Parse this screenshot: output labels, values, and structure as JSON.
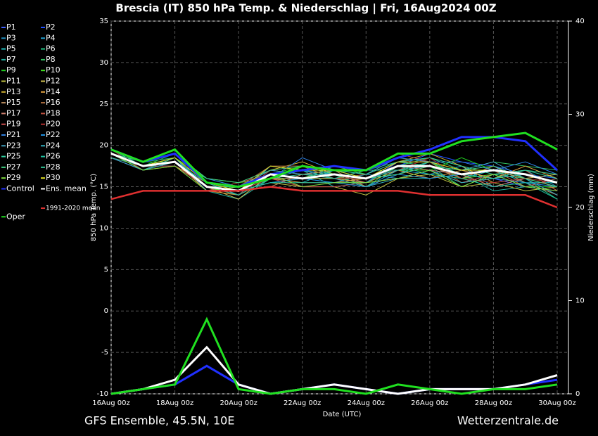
{
  "chart_data": {
    "type": "line",
    "title": "Brescia  (IT)  850 hPa Temp. & Niederschlag | Fri, 16Aug2024 00Z",
    "y_label": "850 hPa Temp. (°C)",
    "y2_label": "Niederschlag (mm)",
    "x_label": "Date (UTC)",
    "footer_left": "GFS Ensemble, 45.5N, 10E",
    "footer_right": "Wetterzentrale.de",
    "categories": [
      "16Aug 00z",
      null,
      "18Aug 00z",
      null,
      "20Aug 00z",
      null,
      "22Aug 00z",
      null,
      "24Aug 00z",
      null,
      "26Aug 00z",
      null,
      "28Aug 00z",
      null,
      "30Aug 00z"
    ],
    "ylim": [
      -10,
      35
    ],
    "yticks": [
      -10,
      -5,
      0,
      5,
      10,
      15,
      20,
      25,
      30,
      35
    ],
    "y2lim": [
      0,
      40
    ],
    "y2ticks": [
      0,
      10,
      20,
      30,
      40
    ],
    "grid": true,
    "series": [
      {
        "name": "P1",
        "color": "#4060ff",
        "values": [
          19,
          17.5,
          18.5,
          15,
          14.5,
          16.5,
          17,
          16,
          15.5,
          18,
          18.5,
          17,
          16,
          15,
          14.5
        ]
      },
      {
        "name": "P2",
        "color": "#2050ff",
        "values": [
          19,
          17,
          18,
          15.5,
          14,
          17,
          16.5,
          17,
          16,
          17.5,
          19,
          18,
          17.5,
          16.5,
          16
        ]
      },
      {
        "name": "P3",
        "color": "#2090c0",
        "values": [
          18.5,
          17,
          18.5,
          14.5,
          15,
          16,
          16,
          15.5,
          16.5,
          16,
          17,
          15.5,
          16,
          17,
          15
        ]
      },
      {
        "name": "P4",
        "color": "#20a0d0",
        "values": [
          19,
          17.5,
          17.5,
          15,
          14,
          17.5,
          17,
          16.5,
          15,
          17,
          16.5,
          17.5,
          15,
          16,
          14
        ]
      },
      {
        "name": "P5",
        "color": "#20c0c0",
        "values": [
          19,
          17,
          18,
          16,
          15,
          16,
          15.5,
          17,
          16,
          16.5,
          18,
          16,
          17,
          15.5,
          15.5
        ]
      },
      {
        "name": "P6",
        "color": "#20c080",
        "values": [
          19.5,
          18,
          18.5,
          15,
          14.5,
          15.5,
          16,
          16,
          17,
          18,
          17.5,
          15,
          16.5,
          16,
          13.5
        ]
      },
      {
        "name": "P7",
        "color": "#20b0a0",
        "values": [
          19,
          17,
          18,
          14.5,
          13.5,
          16,
          17,
          15,
          15.5,
          16,
          16,
          16.5,
          14.5,
          15,
          16
        ]
      },
      {
        "name": "P8",
        "color": "#30c060",
        "values": [
          19,
          17.5,
          19,
          15.5,
          14,
          17,
          16.5,
          16.5,
          15,
          17.5,
          18.5,
          17,
          18,
          17.5,
          17
        ]
      },
      {
        "name": "P9",
        "color": "#20d020",
        "values": [
          19.5,
          18,
          18,
          15,
          15,
          16.5,
          17.5,
          16,
          16,
          17,
          17,
          18.5,
          17,
          15,
          15
        ]
      },
      {
        "name": "P10",
        "color": "#40e020",
        "values": [
          19,
          17.5,
          18.5,
          16,
          15.5,
          16,
          16,
          17.5,
          16.5,
          18.5,
          18,
          16,
          16.5,
          17,
          14.5
        ]
      },
      {
        "name": "P11",
        "color": "#c0c040",
        "values": [
          18.5,
          17,
          18,
          14.5,
          14.5,
          15.5,
          15,
          15,
          14,
          16,
          16.5,
          15,
          15.5,
          14.5,
          15
        ]
      },
      {
        "name": "P12",
        "color": "#d0c050",
        "values": [
          19,
          17.5,
          18.5,
          15,
          13.5,
          16.5,
          16,
          16,
          15.5,
          17,
          17.5,
          16.5,
          17,
          16,
          16.5
        ]
      },
      {
        "name": "P13",
        "color": "#d0b030",
        "values": [
          18.5,
          17,
          17.5,
          15.5,
          15,
          17,
          18,
          16.5,
          16,
          18,
          19,
          17.5,
          15.5,
          16,
          15
        ]
      },
      {
        "name": "P14",
        "color": "#e0a040",
        "values": [
          19,
          17.5,
          18,
          14.5,
          14,
          16,
          15.5,
          15.5,
          16,
          17,
          16,
          17,
          16,
          17.5,
          16
        ]
      },
      {
        "name": "P15",
        "color": "#c09060",
        "values": [
          19,
          17,
          18.5,
          15,
          14.5,
          15,
          16.5,
          17,
          15,
          16.5,
          17.5,
          16,
          17.5,
          15.5,
          14
        ]
      },
      {
        "name": "P16",
        "color": "#b07040",
        "values": [
          19,
          18,
          19,
          15.5,
          15,
          17.5,
          17.5,
          16,
          16.5,
          18,
          18,
          15.5,
          16,
          16.5,
          15.5
        ]
      },
      {
        "name": "P17",
        "color": "#d08070",
        "values": [
          18.5,
          17.5,
          18,
          15,
          14,
          16,
          16,
          16.5,
          15.5,
          17.5,
          17,
          16.5,
          15,
          16,
          15
        ]
      },
      {
        "name": "P18",
        "color": "#c05040",
        "values": [
          19,
          17,
          18.5,
          14.5,
          15.5,
          16.5,
          17,
          17.5,
          17,
          19,
          18,
          17,
          17,
          15,
          16
        ]
      },
      {
        "name": "P19",
        "color": "#d05050",
        "values": [
          19,
          17.5,
          17.5,
          15,
          14.5,
          16,
          15,
          15,
          15.5,
          16,
          17,
          15.5,
          16.5,
          17,
          14.5
        ]
      },
      {
        "name": "P20",
        "color": "#b03030",
        "values": [
          19.5,
          17,
          18,
          15.5,
          14,
          17,
          16.5,
          16,
          16,
          17,
          18.5,
          16,
          15.5,
          16,
          15.5
        ]
      },
      {
        "name": "P21",
        "color": "#3080e0",
        "values": [
          19,
          18,
          19,
          16,
          15,
          16,
          18.5,
          17,
          16.5,
          18.5,
          18,
          18,
          17,
          18,
          16.5
        ]
      },
      {
        "name": "P22",
        "color": "#2090e0",
        "values": [
          18.5,
          17,
          18,
          15,
          14.5,
          15.5,
          16,
          15.5,
          15,
          16.5,
          16,
          16.5,
          16,
          15.5,
          15
        ]
      },
      {
        "name": "P23",
        "color": "#40a0c0",
        "values": [
          19,
          17.5,
          18.5,
          14.5,
          15,
          17,
          16.5,
          16.5,
          16,
          17,
          17.5,
          17,
          18,
          16,
          14
        ]
      },
      {
        "name": "P24",
        "color": "#30b0c0",
        "values": [
          19,
          17,
          18,
          15.5,
          14,
          16,
          17,
          16,
          15,
          16,
          17,
          15.5,
          16,
          16.5,
          15.5
        ]
      },
      {
        "name": "P25",
        "color": "#30d0a0",
        "values": [
          19.5,
          17.5,
          18,
          15,
          15,
          16.5,
          16,
          17,
          16.5,
          18,
          18.5,
          17.5,
          16.5,
          17,
          16
        ]
      },
      {
        "name": "P26",
        "color": "#20c0a0",
        "values": [
          19,
          17,
          18.5,
          15,
          14.5,
          15.5,
          15.5,
          15.5,
          15.5,
          17.5,
          16.5,
          16,
          15,
          15.5,
          13.5
        ]
      },
      {
        "name": "P27",
        "color": "#40d080",
        "values": [
          19,
          18,
          19,
          16,
          15.5,
          17,
          17.5,
          16.5,
          16,
          16.5,
          17.5,
          17,
          17.5,
          16,
          15
        ]
      },
      {
        "name": "P28",
        "color": "#30c090",
        "values": [
          18.5,
          17.5,
          18,
          15,
          14,
          16,
          16.5,
          16,
          17,
          17,
          18,
          16.5,
          16,
          17,
          16.5
        ]
      },
      {
        "name": "P29",
        "color": "#80e040",
        "values": [
          19,
          17,
          17.5,
          14.5,
          15,
          16.5,
          15,
          15.5,
          15.5,
          16,
          17,
          15,
          16.5,
          15,
          14.5
        ]
      },
      {
        "name": "P30",
        "color": "#e0e020",
        "values": [
          19,
          17.5,
          18.5,
          15.5,
          14.5,
          17.5,
          17,
          17,
          16,
          18,
          18,
          17,
          17,
          16.5,
          15.5
        ]
      },
      {
        "name": "Control",
        "color": "#2030ff",
        "values": [
          19.5,
          18,
          19,
          15.5,
          15,
          16.5,
          17,
          17.5,
          17,
          18.5,
          19.5,
          21,
          21,
          20.5,
          17
        ],
        "precip": [
          0,
          0.5,
          1,
          3,
          1,
          0,
          0.5,
          1,
          0.5,
          0,
          0.5,
          0.5,
          0.5,
          1,
          1.5
        ]
      },
      {
        "name": "Ens. mean",
        "color": "#ffffff",
        "values": [
          19,
          17.5,
          18,
          15,
          14.5,
          16.5,
          16,
          16.5,
          16,
          17.5,
          17.5,
          16.5,
          17,
          16.5,
          15.5
        ],
        "precip": [
          0,
          0.5,
          1.5,
          5,
          1,
          0,
          0.5,
          1,
          0.5,
          0,
          0.5,
          0.5,
          0.5,
          1,
          2
        ]
      },
      {
        "name": "1991-2020 mean",
        "color": "#e03030",
        "values": [
          13.5,
          14.5,
          14.5,
          14.5,
          14.5,
          15,
          14.5,
          14.5,
          14.5,
          14.5,
          14,
          14,
          14,
          14,
          12.5
        ]
      },
      {
        "name": "Oper",
        "color": "#20e020",
        "values": [
          19.5,
          18,
          19.5,
          15.5,
          15,
          16,
          17.5,
          17,
          17,
          19,
          19,
          20.5,
          21,
          21.5,
          19.5
        ],
        "precip": [
          0,
          0.5,
          1,
          8,
          0.5,
          0,
          0.5,
          0.5,
          0,
          1,
          0.5,
          0,
          0.5,
          0.5,
          1
        ]
      }
    ]
  }
}
